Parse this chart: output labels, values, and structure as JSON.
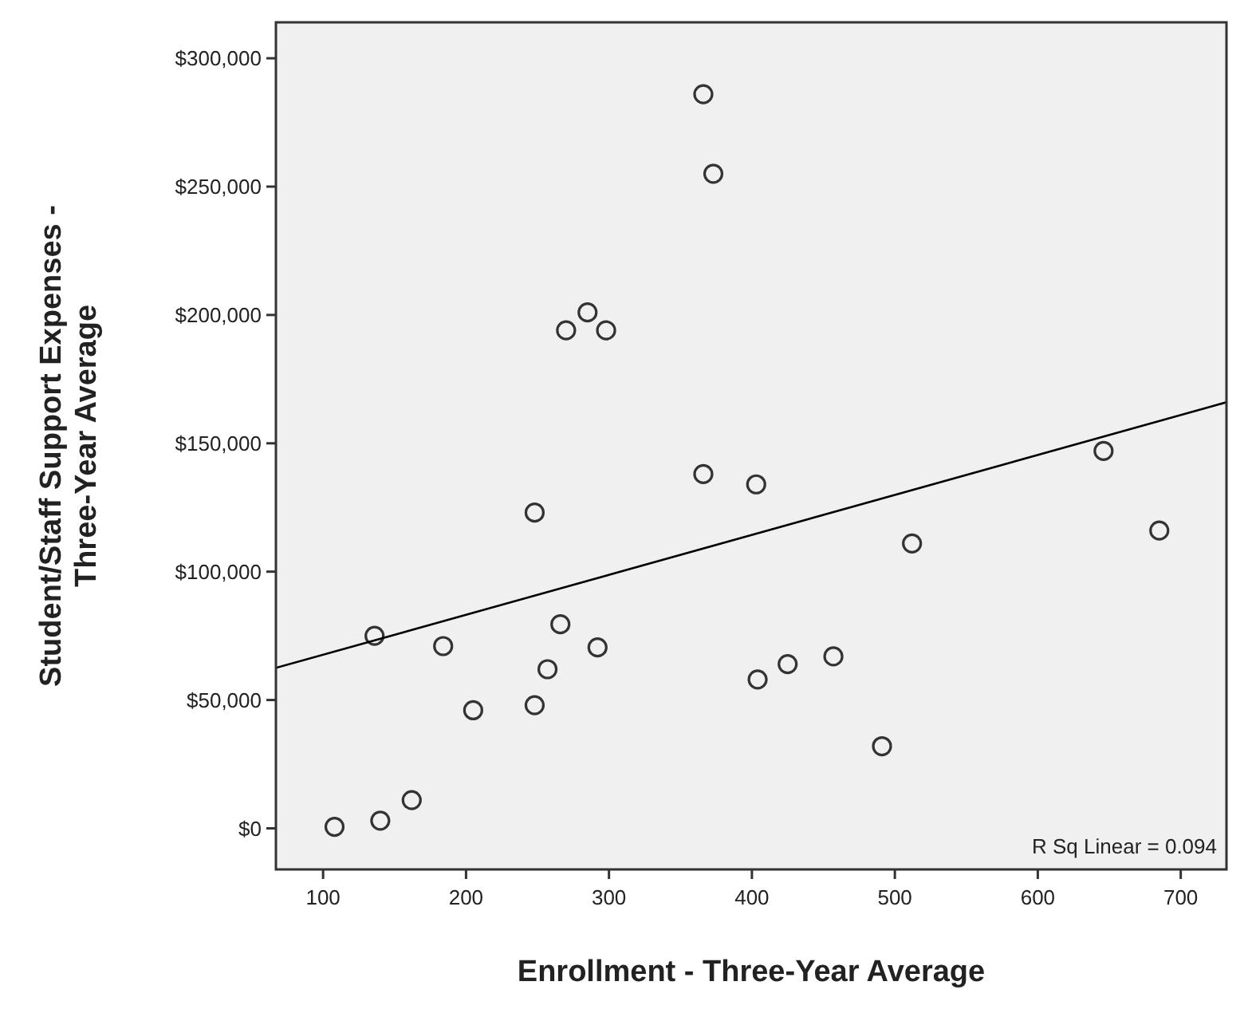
{
  "chart_data": {
    "type": "scatter",
    "xlabel": "Enrollment - Three-Year Average",
    "ylabel": "Student/Staff Support Expenses - Three-Year Average",
    "xlim": [
      67,
      732
    ],
    "ylim": [
      -16000,
      314000
    ],
    "xticks": [
      100,
      200,
      300,
      400,
      500,
      600,
      700
    ],
    "yticks": [
      {
        "value": 0,
        "label": "$0"
      },
      {
        "value": 50000,
        "label": "$50,000"
      },
      {
        "value": 100000,
        "label": "$100,000"
      },
      {
        "value": 150000,
        "label": "$150,000"
      },
      {
        "value": 200000,
        "label": "$200,000"
      },
      {
        "value": 250000,
        "label": "$250,000"
      },
      {
        "value": 300000,
        "label": "$300,000"
      }
    ],
    "marker": "circle",
    "grid": false,
    "series": [
      {
        "type": "scatter",
        "color": "#333333",
        "x": [
          108,
          140,
          162,
          136,
          184,
          205,
          248,
          257,
          266,
          292,
          248,
          366,
          373,
          285,
          270,
          298,
          366,
          403,
          404,
          425,
          457,
          491,
          512,
          646,
          685
        ],
        "values": [
          600,
          3000,
          11000,
          75000,
          71000,
          46000,
          48000,
          62000,
          79500,
          70500,
          123000,
          286000,
          255000,
          201000,
          194000,
          194000,
          138000,
          134000,
          58000,
          64000,
          67000,
          32000,
          111000,
          147000,
          116000
        ]
      },
      {
        "type": "line",
        "color": "#000000",
        "line_style": "solid",
        "marker": "none",
        "x": [
          67,
          732
        ],
        "values": [
          62500,
          166000
        ]
      }
    ],
    "annotations": [
      "R Sq Linear = 0.094"
    ]
  }
}
